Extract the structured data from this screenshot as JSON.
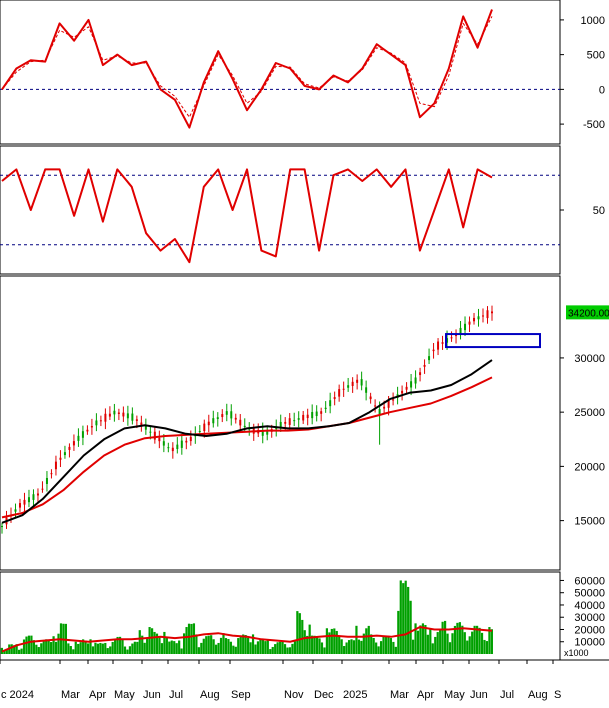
{
  "colors": {
    "up": "#00a000",
    "down": "#e00000",
    "ma_slow": "#e00000",
    "ma_fast": "#000000",
    "volume": "#00a000",
    "volume_ma": "#e00000",
    "box": "#0000c0",
    "price_tag_bg": "#00cc00",
    "grid": "#000080"
  },
  "x_axis": {
    "labels": [
      "c 2024",
      "Mar",
      "Apr",
      "May",
      "Jun",
      "Jul",
      "Aug",
      "Sep",
      "Nov",
      "Dec",
      "2025",
      "Mar",
      "Apr",
      "May",
      "Jun",
      "Jul",
      "Aug",
      "S"
    ]
  },
  "chart_data": [
    {
      "type": "line",
      "panel": "oscillator-1",
      "y_ticks": [
        "1000",
        "500",
        "0",
        "-500"
      ],
      "ylim": [
        -700,
        1200
      ],
      "reference_lines": [
        0
      ],
      "series": [
        {
          "values": [
            0,
            300,
            420,
            400,
            950,
            700,
            1000,
            350,
            500,
            350,
            400,
            0,
            -150,
            -550,
            100,
            550,
            150,
            -300,
            0,
            380,
            300,
            50,
            0,
            200,
            100,
            300,
            650,
            500,
            350,
            -400,
            -200,
            300,
            1050,
            600,
            1150
          ]
        },
        {
          "values": [
            0,
            250,
            400,
            420,
            850,
            750,
            900,
            420,
            480,
            380,
            380,
            50,
            -100,
            -400,
            50,
            500,
            200,
            -200,
            -30,
            330,
            320,
            80,
            20,
            180,
            120,
            280,
            600,
            520,
            380,
            -200,
            -250,
            200,
            950,
            650,
            1050
          ]
        }
      ]
    },
    {
      "type": "line",
      "panel": "oscillator-2",
      "y_ticks": [
        "50"
      ],
      "ylim": [
        0,
        100
      ],
      "reference_lines": [
        80,
        20
      ],
      "series": [
        {
          "values": [
            75,
            85,
            50,
            85,
            85,
            45,
            85,
            40,
            85,
            70,
            30,
            15,
            25,
            5,
            70,
            85,
            50,
            85,
            15,
            10,
            85,
            85,
            15,
            80,
            85,
            75,
            85,
            70,
            85,
            15,
            50,
            85,
            35,
            85,
            78
          ]
        }
      ]
    },
    {
      "type": "candlestick",
      "panel": "price",
      "y_ticks": [
        "30000",
        "25000",
        "20000",
        "15000"
      ],
      "ylim": [
        11000,
        37000
      ],
      "last_price_label": "34200.00",
      "price_series": [
        14500,
        16500,
        17500,
        20500,
        22500,
        24000,
        25000,
        24500,
        23000,
        21500,
        22500,
        24000,
        25000,
        23500,
        23000,
        24000,
        24500,
        25000,
        27000,
        28000,
        25000,
        26500,
        28000,
        31000,
        32000,
        33500,
        34200
      ],
      "series": [
        {
          "values": [
            14800,
            15500,
            17000,
            19000,
            21000,
            22500,
            23500,
            23800,
            23500,
            23000,
            22800,
            23000,
            23500,
            23700,
            23500,
            23500,
            23700,
            24000,
            25000,
            26200,
            26800,
            27000,
            27500,
            28500,
            29800
          ]
        },
        {
          "values": [
            15300,
            15700,
            16500,
            17800,
            19500,
            21000,
            22000,
            22600,
            22800,
            22900,
            23000,
            23100,
            23200,
            23300,
            23300,
            23400,
            23700,
            24000,
            24500,
            25000,
            25400,
            25800,
            26500,
            27300,
            28200
          ]
        }
      ],
      "annotations": [
        {
          "type": "box",
          "y_range": [
            31000,
            32200
          ]
        }
      ]
    },
    {
      "type": "bar",
      "panel": "volume",
      "y_ticks": [
        "60000",
        "50000",
        "40000",
        "30000",
        "20000",
        "10000"
      ],
      "multiplier_label": "x1000",
      "ylim": [
        0,
        62000
      ],
      "values": [
        5000,
        8000,
        15000,
        12000,
        25000,
        10000,
        12000,
        9000,
        14000,
        10000,
        22000,
        18000,
        11000,
        25000,
        15000,
        17000,
        13000,
        16000,
        12000,
        10000,
        11000,
        35000,
        15000,
        21000,
        12000,
        23000,
        16000,
        15000,
        60000,
        25000,
        20000,
        27000,
        26000,
        23000,
        22000
      ],
      "ma_values": [
        2000,
        7000,
        10000,
        11000,
        12000,
        11000,
        10000,
        11000,
        12000,
        12000,
        13000,
        14000,
        13000,
        14000,
        16000,
        17000,
        15000,
        14000,
        12000,
        11000,
        10000,
        13000,
        14000,
        15000,
        14000,
        14000,
        15000,
        14000,
        16000,
        22000,
        20000,
        20000,
        21000,
        20000,
        19000
      ]
    }
  ]
}
